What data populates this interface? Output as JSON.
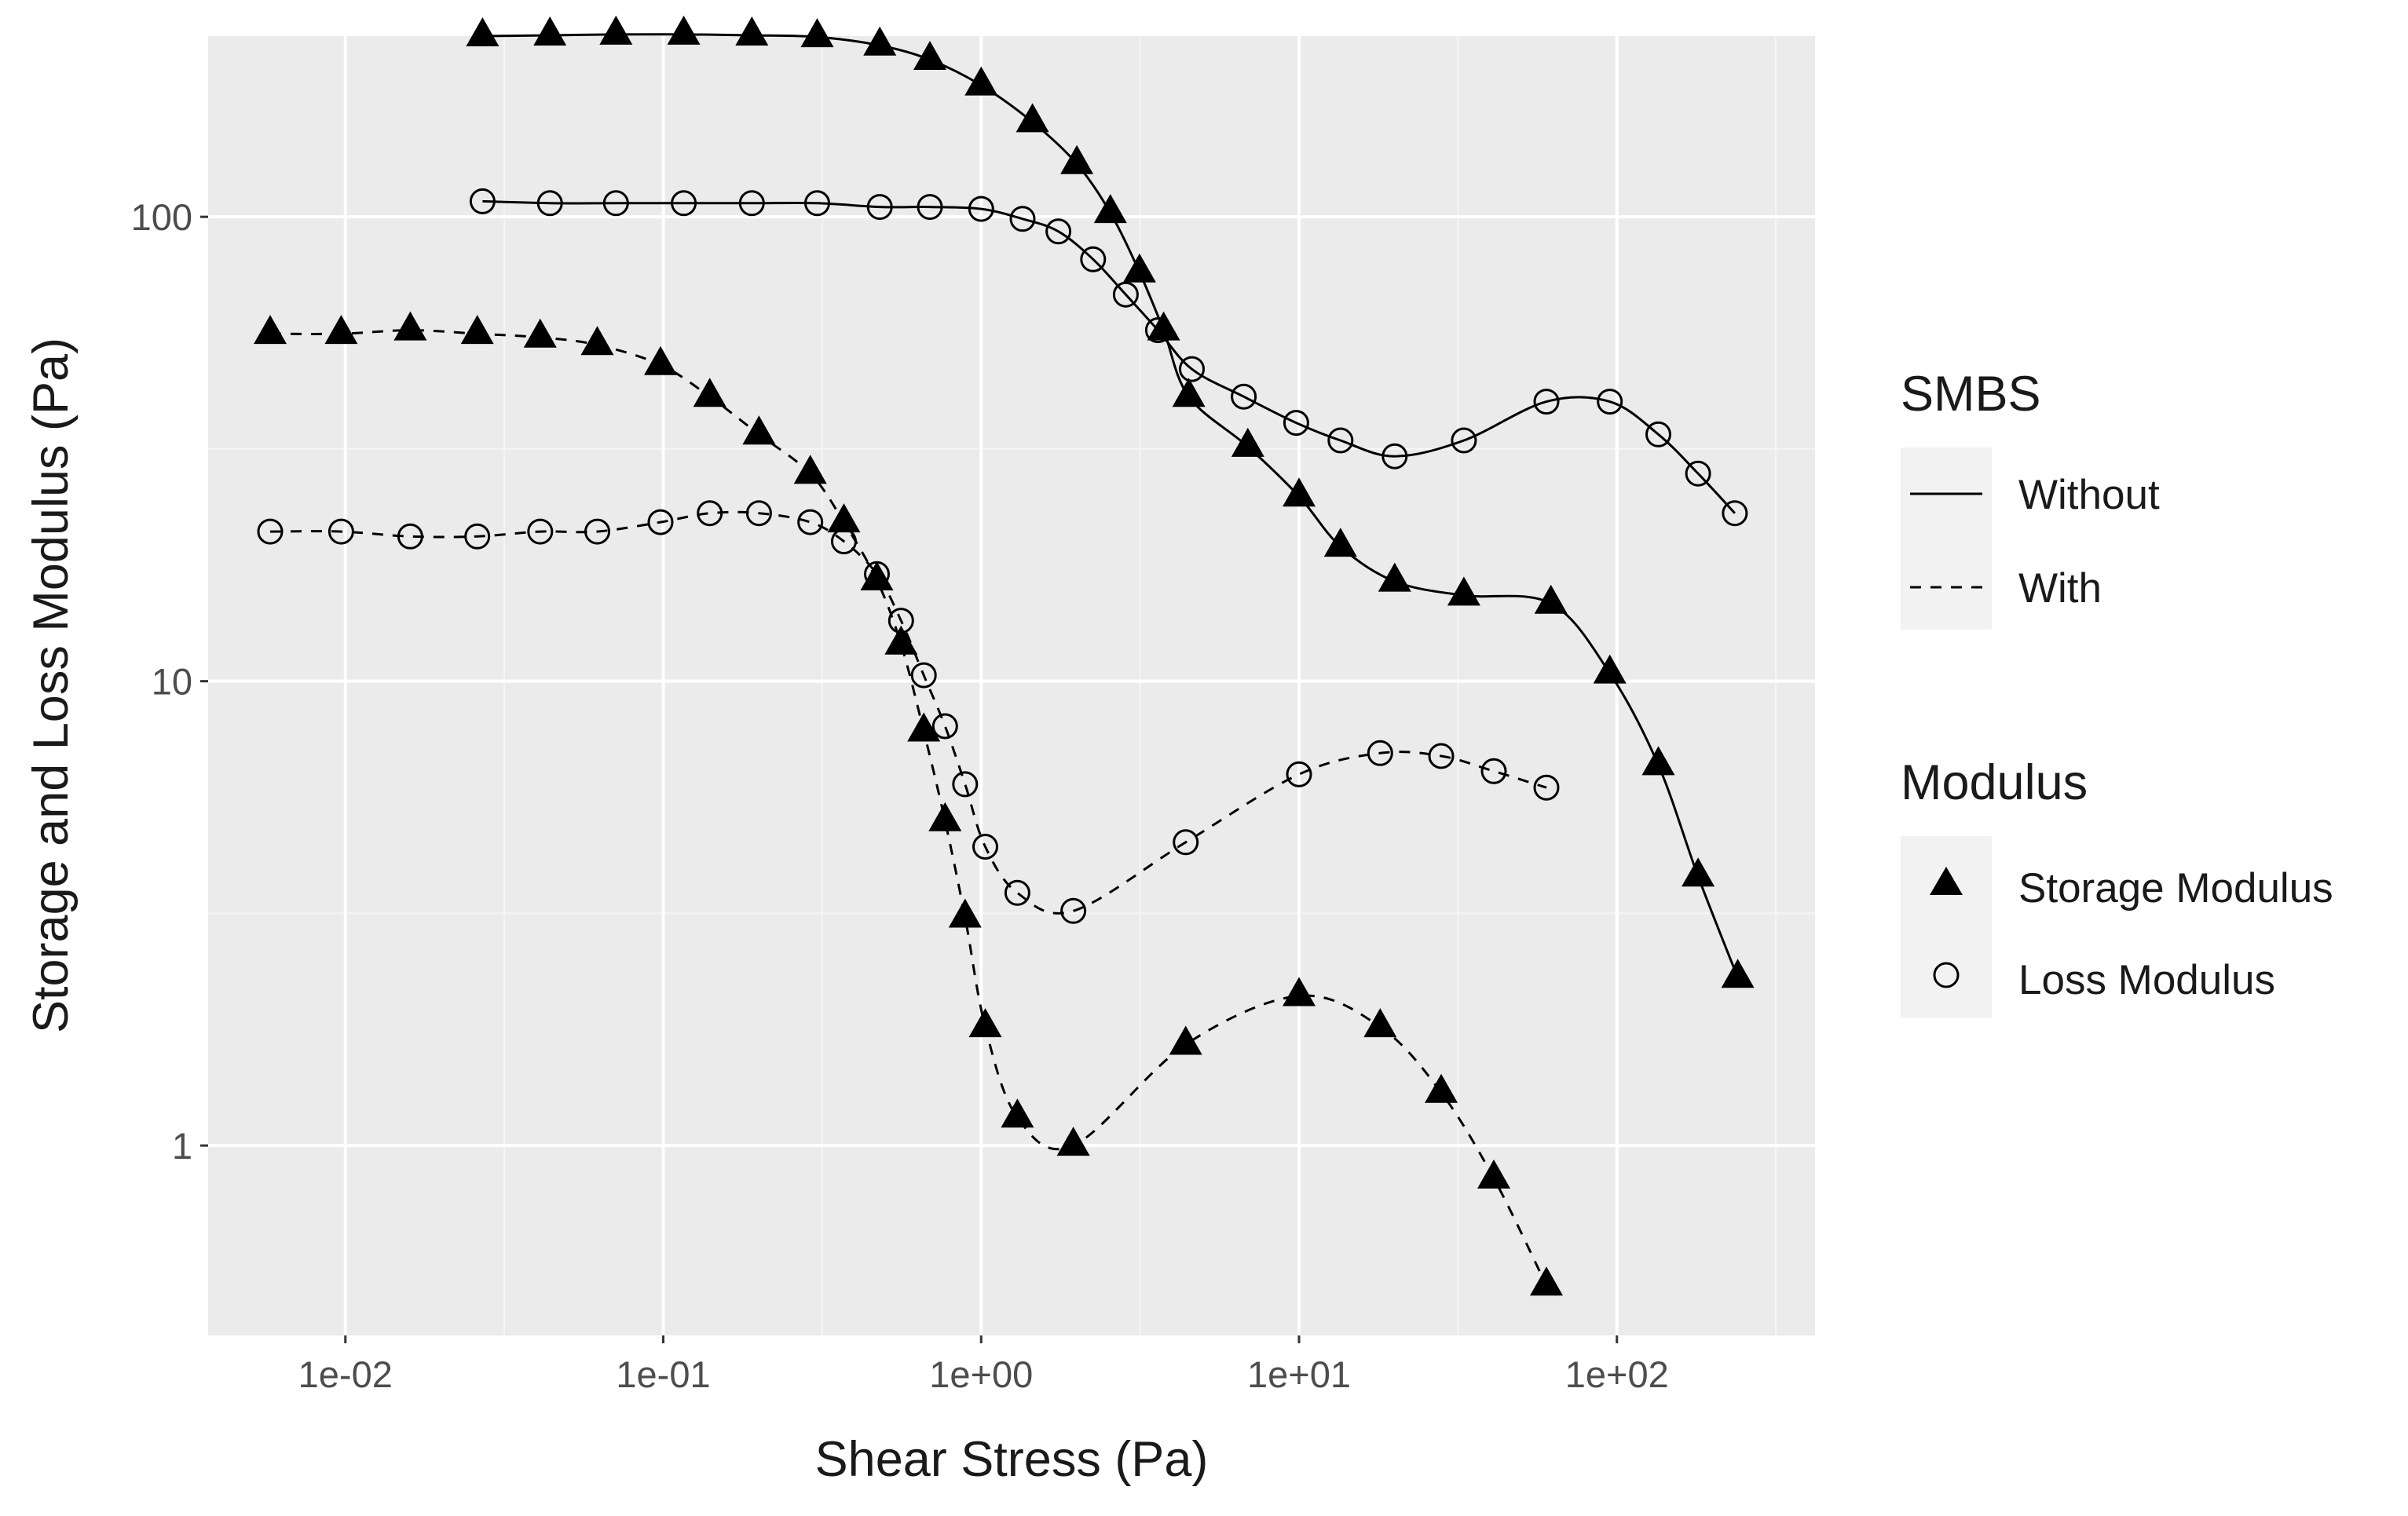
{
  "chart_data": {
    "type": "scatter",
    "title": "",
    "xlabel": "Shear Stress (Pa)",
    "ylabel": "Storage and Loss Modulus (Pa)",
    "xscale": "log10",
    "yscale": "log10",
    "xlim": [
      0.0037,
      420
    ],
    "ylim": [
      0.39,
      245
    ],
    "grid": true,
    "x_ticks": [
      {
        "value": 0.01,
        "label": "1e-02"
      },
      {
        "value": 0.1,
        "label": "1e-01"
      },
      {
        "value": 1,
        "label": "1e+00"
      },
      {
        "value": 10,
        "label": "1e+01"
      },
      {
        "value": 100,
        "label": "1e+02"
      }
    ],
    "y_ticks": [
      {
        "value": 1,
        "label": "1"
      },
      {
        "value": 10,
        "label": "10"
      },
      {
        "value": 100,
        "label": "100"
      }
    ],
    "legend": {
      "placement": "right",
      "groups": [
        {
          "title": "SMBS",
          "entries": [
            {
              "label": "Without",
              "line": "solid"
            },
            {
              "label": "With",
              "line": "dashed"
            }
          ]
        },
        {
          "title": "Modulus",
          "entries": [
            {
              "label": "Storage Modulus",
              "marker": "filled-triangle"
            },
            {
              "label": "Loss Modulus",
              "marker": "open-circle"
            }
          ]
        }
      ]
    },
    "series": [
      {
        "name": "Storage Modulus - Without",
        "smbs": "Without",
        "modulus": "Storage Modulus",
        "line": "solid",
        "marker": "filled-triangle",
        "x": [
          0.027,
          0.044,
          0.071,
          0.116,
          0.19,
          0.305,
          0.48,
          0.69,
          1.0,
          1.45,
          2.0,
          2.55,
          3.15,
          3.75,
          4.5,
          6.9,
          10.0,
          13.5,
          20.0,
          33.0,
          62.0,
          95.0,
          135.0,
          180.0,
          240.0
        ],
        "y": [
          245,
          246,
          247,
          247,
          246,
          244,
          234,
          218,
          192,
          160,
          130,
          102,
          76,
          57,
          41,
          32,
          25,
          19.5,
          16.4,
          15.3,
          14.7,
          10.4,
          6.6,
          3.8,
          2.3
        ]
      },
      {
        "name": "Loss Modulus - Without",
        "smbs": "Without",
        "modulus": "Loss Modulus",
        "line": "solid",
        "marker": "open-circle",
        "x": [
          0.027,
          0.044,
          0.071,
          0.116,
          0.19,
          0.305,
          0.48,
          0.69,
          1.0,
          1.35,
          1.75,
          2.25,
          2.85,
          3.6,
          4.6,
          6.7,
          9.8,
          13.5,
          20.0,
          33.0,
          60.0,
          95.0,
          135.0,
          180.0,
          235.0
        ],
        "y": [
          108,
          107,
          107,
          107,
          107,
          107,
          105,
          105,
          104,
          99,
          93,
          81,
          68,
          57,
          47,
          41,
          36,
          33,
          30.5,
          33,
          40,
          40,
          34,
          28,
          23
        ]
      },
      {
        "name": "Storage Modulus - With",
        "smbs": "With",
        "modulus": "Storage Modulus",
        "line": "dashed",
        "marker": "filled-triangle",
        "x": [
          0.0058,
          0.0097,
          0.016,
          0.026,
          0.041,
          0.062,
          0.098,
          0.14,
          0.2,
          0.29,
          0.37,
          0.47,
          0.56,
          0.66,
          0.77,
          0.89,
          1.03,
          1.3,
          1.95,
          4.4,
          10.0,
          18.0,
          28.0,
          41.0,
          60.0
        ],
        "y": [
          56,
          56,
          57,
          56,
          55,
          53,
          48,
          41,
          34,
          28,
          22,
          16.5,
          12,
          7.8,
          5.0,
          3.1,
          1.8,
          1.15,
          1.0,
          1.65,
          2.1,
          1.8,
          1.3,
          0.85,
          0.5
        ]
      },
      {
        "name": "Loss Modulus - With",
        "smbs": "With",
        "modulus": "Loss Modulus",
        "line": "dashed",
        "marker": "open-circle",
        "x": [
          0.0058,
          0.0097,
          0.016,
          0.026,
          0.041,
          0.062,
          0.098,
          0.14,
          0.2,
          0.29,
          0.37,
          0.47,
          0.56,
          0.66,
          0.77,
          0.89,
          1.03,
          1.3,
          1.95,
          4.4,
          10.0,
          18.0,
          28.0,
          41.0,
          60.0
        ],
        "y": [
          21,
          21,
          20.5,
          20.5,
          21,
          21,
          22,
          23,
          23,
          22,
          20,
          17,
          13.5,
          10.3,
          8.0,
          6.0,
          4.4,
          3.5,
          3.2,
          4.5,
          6.3,
          7.0,
          6.9,
          6.4,
          5.9
        ]
      }
    ]
  }
}
